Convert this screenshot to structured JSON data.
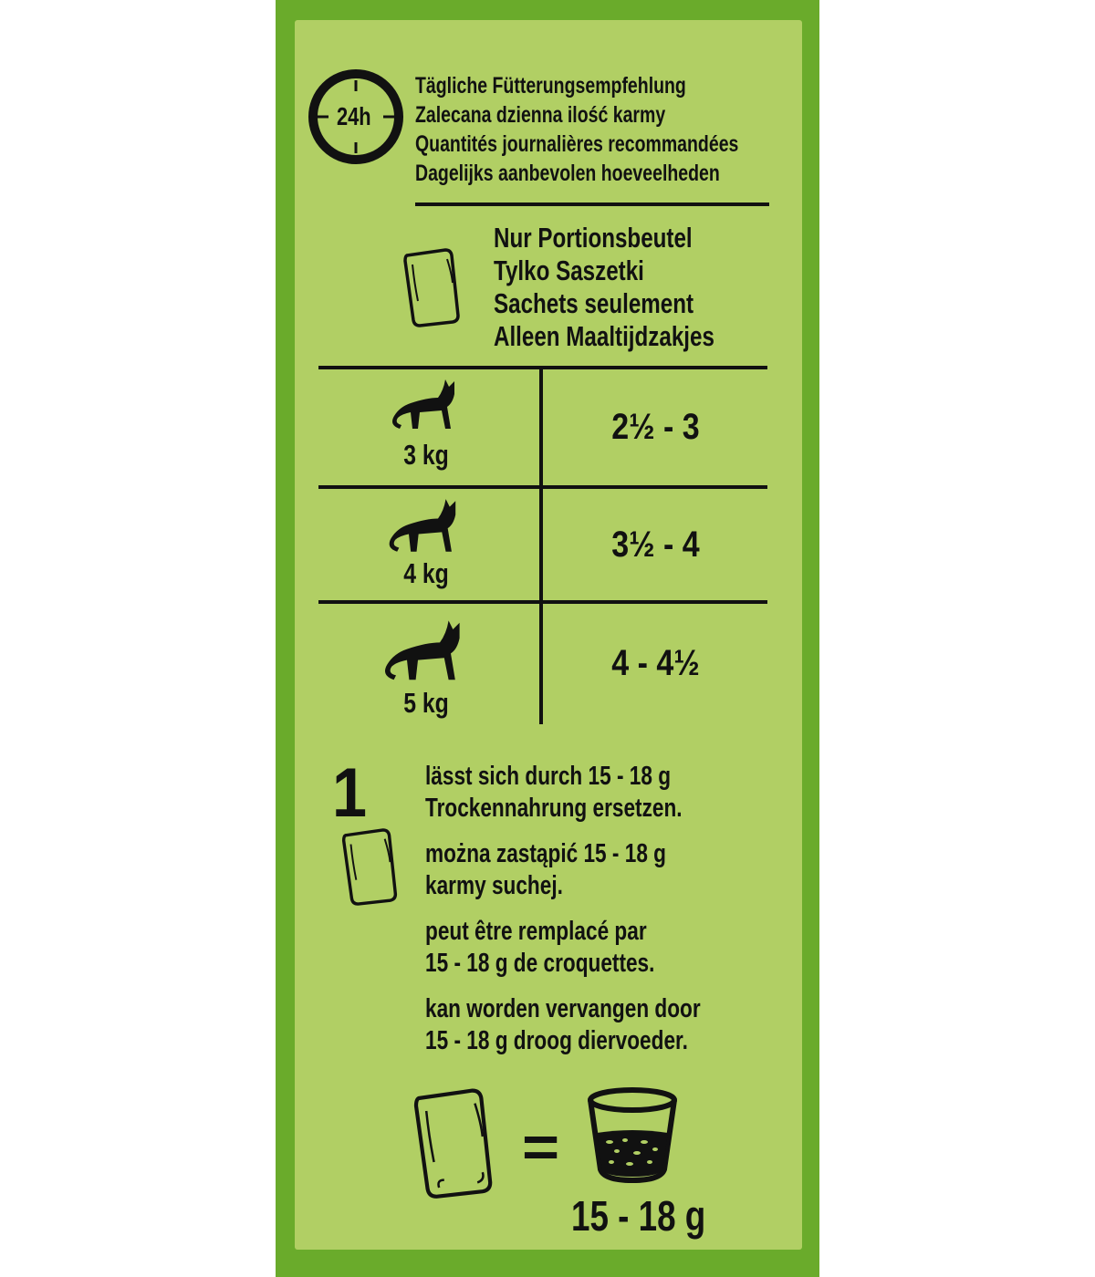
{
  "colors": {
    "outer": "#6aab2b",
    "inner": "#b1cf64",
    "ink": "#111111"
  },
  "header": {
    "clock_label": "24h",
    "lines": [
      "Tägliche Fütterungsempfehlung",
      "Zalecana dzienna ilość karmy",
      "Quantités journalières recommandées",
      "Dagelijks aanbevolen hoeveelheden"
    ]
  },
  "sachets_only": {
    "icon": "sachet-icon",
    "lines": [
      "Nur Portionsbeutel",
      "Tylko Saszetki",
      "Sachets seulement",
      "Alleen Maaltijdzakjes"
    ]
  },
  "table": {
    "rows": [
      {
        "icon": "cat-icon",
        "weight": "3 kg",
        "amount": "2½ - 3"
      },
      {
        "icon": "cat-icon",
        "weight": "4 kg",
        "amount": "3½ - 4"
      },
      {
        "icon": "cat-icon",
        "weight": "5 kg",
        "amount": "4 - 4½"
      }
    ]
  },
  "replacement": {
    "count": "1",
    "paragraphs": [
      [
        "lässt sich durch 15 - 18 g",
        "Trockennahrung ersetzen."
      ],
      [
        "można zastąpić 15 - 18 g",
        "karmy suchej."
      ],
      [
        "peut être remplacé par",
        "15 - 18 g de croquettes."
      ],
      [
        "kan worden vervangen door",
        "15 - 18 g droog diervoeder."
      ]
    ]
  },
  "equation": {
    "equals": "=",
    "dry_amount": "15 - 18 g",
    "icons": [
      "sachet-icon",
      "cup-icon"
    ]
  }
}
